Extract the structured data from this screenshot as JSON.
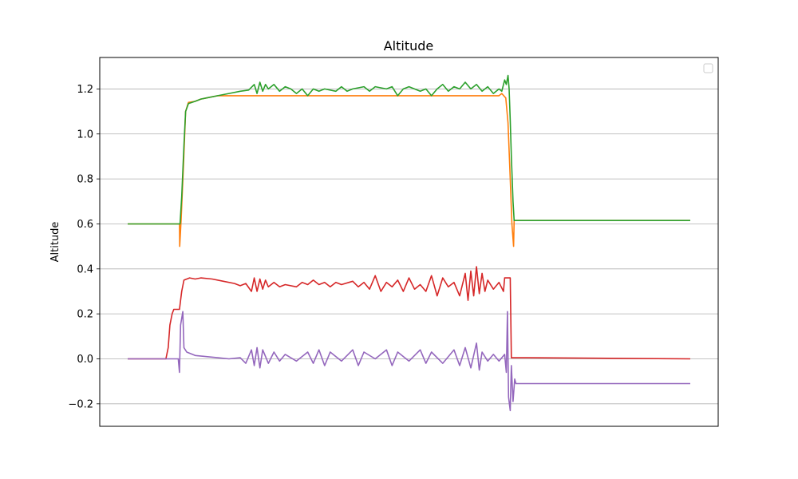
{
  "chart_data": {
    "type": "line",
    "title": "Altitude",
    "xlabel": "",
    "ylabel": "Altitude",
    "xlim": [
      0,
      100
    ],
    "ylim": [
      -0.3,
      1.34
    ],
    "grid": "horizontal",
    "legend": "top-right (empty)",
    "y_ticks": [
      {
        "value": -0.2,
        "label": "−0.2"
      },
      {
        "value": 0.0,
        "label": "0.0"
      },
      {
        "value": 0.2,
        "label": "0.2"
      },
      {
        "value": 0.4,
        "label": "0.4"
      },
      {
        "value": 0.6,
        "label": "0.6"
      },
      {
        "value": 0.8,
        "label": "0.8"
      },
      {
        "value": 1.0,
        "label": "1.0"
      },
      {
        "value": 1.2,
        "label": "1.2"
      }
    ],
    "series": [
      {
        "color": "#ff7f0e",
        "points": [
          [
            0,
            0.6
          ],
          [
            9.2,
            0.6
          ],
          [
            9.25,
            0.5
          ],
          [
            9.5,
            0.62
          ],
          [
            9.9,
            0.85
          ],
          [
            10.3,
            1.1
          ],
          [
            10.8,
            1.14
          ],
          [
            12,
            1.145
          ],
          [
            13,
            1.155
          ],
          [
            14,
            1.16
          ],
          [
            16,
            1.17
          ],
          [
            18,
            1.17
          ],
          [
            30,
            1.17
          ],
          [
            50,
            1.17
          ],
          [
            66,
            1.17
          ],
          [
            66.5,
            1.18
          ],
          [
            67.2,
            1.16
          ],
          [
            67.6,
            1.05
          ],
          [
            68,
            0.8
          ],
          [
            68.3,
            0.6
          ],
          [
            68.6,
            0.5
          ],
          [
            68.7,
            0.615
          ],
          [
            100,
            0.615
          ]
        ]
      },
      {
        "color": "#2ca02c",
        "points": [
          [
            0,
            0.6
          ],
          [
            9.3,
            0.6
          ],
          [
            9.6,
            0.72
          ],
          [
            10,
            0.95
          ],
          [
            10.3,
            1.1
          ],
          [
            10.8,
            1.135
          ],
          [
            12,
            1.145
          ],
          [
            13,
            1.155
          ],
          [
            14,
            1.16
          ],
          [
            16,
            1.17
          ],
          [
            18,
            1.18
          ],
          [
            20,
            1.19
          ],
          [
            21.5,
            1.195
          ],
          [
            22.5,
            1.22
          ],
          [
            23,
            1.18
          ],
          [
            23.5,
            1.23
          ],
          [
            24,
            1.19
          ],
          [
            24.5,
            1.22
          ],
          [
            25,
            1.2
          ],
          [
            26,
            1.22
          ],
          [
            27,
            1.19
          ],
          [
            28,
            1.21
          ],
          [
            29,
            1.2
          ],
          [
            30,
            1.18
          ],
          [
            31,
            1.2
          ],
          [
            32,
            1.17
          ],
          [
            33,
            1.2
          ],
          [
            34,
            1.19
          ],
          [
            35,
            1.2
          ],
          [
            37,
            1.19
          ],
          [
            38,
            1.21
          ],
          [
            39,
            1.19
          ],
          [
            40,
            1.2
          ],
          [
            42,
            1.21
          ],
          [
            43,
            1.19
          ],
          [
            44,
            1.21
          ],
          [
            46,
            1.2
          ],
          [
            47,
            1.21
          ],
          [
            48,
            1.17
          ],
          [
            49,
            1.2
          ],
          [
            50,
            1.21
          ],
          [
            52,
            1.19
          ],
          [
            53,
            1.2
          ],
          [
            54,
            1.17
          ],
          [
            55,
            1.2
          ],
          [
            56,
            1.22
          ],
          [
            57,
            1.19
          ],
          [
            58,
            1.21
          ],
          [
            59,
            1.2
          ],
          [
            60,
            1.23
          ],
          [
            61,
            1.2
          ],
          [
            62,
            1.22
          ],
          [
            63,
            1.19
          ],
          [
            64,
            1.21
          ],
          [
            65,
            1.18
          ],
          [
            66,
            1.2
          ],
          [
            66.5,
            1.19
          ],
          [
            67,
            1.24
          ],
          [
            67.3,
            1.22
          ],
          [
            67.6,
            1.26
          ],
          [
            67.8,
            1.2
          ],
          [
            68,
            1.06
          ],
          [
            68.2,
            0.9
          ],
          [
            68.5,
            0.7
          ],
          [
            68.7,
            0.615
          ],
          [
            100,
            0.615
          ]
        ]
      },
      {
        "color": "#d62728",
        "points": [
          [
            0,
            0.0
          ],
          [
            6.8,
            0.0
          ],
          [
            7.2,
            0.05
          ],
          [
            7.5,
            0.15
          ],
          [
            7.9,
            0.2
          ],
          [
            8.2,
            0.22
          ],
          [
            9.2,
            0.22
          ],
          [
            9.6,
            0.3
          ],
          [
            10,
            0.35
          ],
          [
            11,
            0.36
          ],
          [
            12,
            0.355
          ],
          [
            13,
            0.36
          ],
          [
            15,
            0.355
          ],
          [
            17,
            0.345
          ],
          [
            19,
            0.335
          ],
          [
            20,
            0.325
          ],
          [
            21,
            0.335
          ],
          [
            22,
            0.3
          ],
          [
            22.5,
            0.36
          ],
          [
            23,
            0.3
          ],
          [
            23.5,
            0.355
          ],
          [
            24,
            0.31
          ],
          [
            24.5,
            0.35
          ],
          [
            25,
            0.32
          ],
          [
            26,
            0.34
          ],
          [
            27,
            0.32
          ],
          [
            28,
            0.33
          ],
          [
            30,
            0.32
          ],
          [
            31,
            0.34
          ],
          [
            32,
            0.33
          ],
          [
            33,
            0.35
          ],
          [
            34,
            0.33
          ],
          [
            35,
            0.34
          ],
          [
            36,
            0.32
          ],
          [
            37,
            0.34
          ],
          [
            38,
            0.33
          ],
          [
            40,
            0.345
          ],
          [
            41,
            0.32
          ],
          [
            42,
            0.34
          ],
          [
            43,
            0.31
          ],
          [
            44,
            0.37
          ],
          [
            45,
            0.3
          ],
          [
            46,
            0.34
          ],
          [
            47,
            0.32
          ],
          [
            48,
            0.35
          ],
          [
            49,
            0.3
          ],
          [
            50,
            0.36
          ],
          [
            51,
            0.31
          ],
          [
            52,
            0.33
          ],
          [
            53,
            0.3
          ],
          [
            54,
            0.37
          ],
          [
            55,
            0.28
          ],
          [
            56,
            0.36
          ],
          [
            57,
            0.32
          ],
          [
            58,
            0.34
          ],
          [
            59,
            0.28
          ],
          [
            60,
            0.38
          ],
          [
            60.5,
            0.26
          ],
          [
            61,
            0.39
          ],
          [
            61.5,
            0.28
          ],
          [
            62,
            0.41
          ],
          [
            62.5,
            0.29
          ],
          [
            63,
            0.38
          ],
          [
            63.5,
            0.3
          ],
          [
            64,
            0.35
          ],
          [
            65,
            0.31
          ],
          [
            66,
            0.34
          ],
          [
            66.8,
            0.3
          ],
          [
            67,
            0.36
          ],
          [
            68,
            0.36
          ],
          [
            68.2,
            0.005
          ],
          [
            71,
            0.005
          ],
          [
            100,
            0.0
          ]
        ]
      },
      {
        "color": "#9467bd",
        "points": [
          [
            0,
            0.0
          ],
          [
            9.0,
            0.0
          ],
          [
            9.2,
            -0.06
          ],
          [
            9.4,
            0.15
          ],
          [
            9.8,
            0.21
          ],
          [
            10,
            0.05
          ],
          [
            10.5,
            0.03
          ],
          [
            12,
            0.015
          ],
          [
            14,
            0.01
          ],
          [
            16,
            0.005
          ],
          [
            18,
            0.0
          ],
          [
            20,
            0.005
          ],
          [
            21,
            -0.02
          ],
          [
            22,
            0.04
          ],
          [
            22.5,
            -0.03
          ],
          [
            23,
            0.05
          ],
          [
            23.5,
            -0.04
          ],
          [
            24,
            0.04
          ],
          [
            25,
            -0.02
          ],
          [
            26,
            0.03
          ],
          [
            27,
            -0.01
          ],
          [
            28,
            0.02
          ],
          [
            30,
            -0.01
          ],
          [
            32,
            0.03
          ],
          [
            33,
            -0.02
          ],
          [
            34,
            0.04
          ],
          [
            35,
            -0.03
          ],
          [
            36,
            0.03
          ],
          [
            38,
            -0.01
          ],
          [
            40,
            0.04
          ],
          [
            41,
            -0.03
          ],
          [
            42,
            0.03
          ],
          [
            44,
            0.0
          ],
          [
            46,
            0.04
          ],
          [
            47,
            -0.03
          ],
          [
            48,
            0.03
          ],
          [
            50,
            -0.01
          ],
          [
            52,
            0.04
          ],
          [
            53,
            -0.02
          ],
          [
            54,
            0.03
          ],
          [
            56,
            -0.02
          ],
          [
            58,
            0.04
          ],
          [
            59,
            -0.03
          ],
          [
            60,
            0.05
          ],
          [
            61,
            -0.04
          ],
          [
            62,
            0.07
          ],
          [
            62.5,
            -0.05
          ],
          [
            63,
            0.03
          ],
          [
            64,
            -0.01
          ],
          [
            65,
            0.02
          ],
          [
            66,
            -0.01
          ],
          [
            67,
            0.02
          ],
          [
            67.3,
            -0.06
          ],
          [
            67.5,
            0.21
          ],
          [
            67.7,
            -0.17
          ],
          [
            68,
            -0.23
          ],
          [
            68.2,
            -0.03
          ],
          [
            68.5,
            -0.19
          ],
          [
            68.8,
            -0.09
          ],
          [
            69,
            -0.11
          ],
          [
            100,
            -0.11
          ]
        ]
      }
    ]
  }
}
